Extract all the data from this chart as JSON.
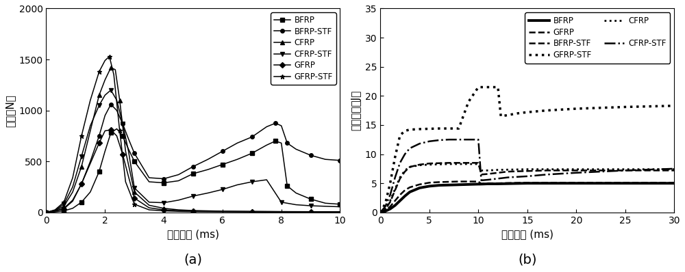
{
  "plot_a": {
    "title": "(a)",
    "xlabel": "冲击时间 (ms)",
    "ylabel": "抗力（N）",
    "xlim": [
      0,
      10
    ],
    "ylim": [
      0,
      2000
    ],
    "yticks": [
      0,
      500,
      1000,
      1500,
      2000
    ],
    "xticks": [
      0,
      2,
      4,
      6,
      8,
      10
    ],
    "series": {
      "BFRP": {
        "marker": "s",
        "x": [
          0,
          0.3,
          0.6,
          0.9,
          1.2,
          1.5,
          1.8,
          2.0,
          2.2,
          2.4,
          2.6,
          2.8,
          3.0,
          3.5,
          4.0,
          4.5,
          5.0,
          5.5,
          6.0,
          6.5,
          7.0,
          7.5,
          7.8,
          8.0,
          8.2,
          8.5,
          9.0,
          9.5,
          10.0
        ],
        "y": [
          0,
          5,
          15,
          40,
          100,
          200,
          400,
          600,
          780,
          820,
          750,
          620,
          500,
          300,
          290,
          310,
          380,
          420,
          470,
          520,
          580,
          660,
          700,
          680,
          260,
          190,
          130,
          90,
          80
        ]
      },
      "BFRP-STF": {
        "marker": "o",
        "x": [
          0,
          0.3,
          0.6,
          0.9,
          1.2,
          1.5,
          1.8,
          2.0,
          2.2,
          2.4,
          2.6,
          2.8,
          3.0,
          3.5,
          4.0,
          4.5,
          5.0,
          5.5,
          6.0,
          6.5,
          7.0,
          7.5,
          7.8,
          8.0,
          8.2,
          8.5,
          9.0,
          9.5,
          10.0
        ],
        "y": [
          0,
          10,
          40,
          120,
          280,
          500,
          750,
          950,
          1060,
          1000,
          870,
          720,
          580,
          340,
          330,
          370,
          450,
          520,
          600,
          680,
          740,
          840,
          875,
          850,
          680,
          620,
          560,
          520,
          510
        ]
      },
      "CFRP": {
        "marker": "^",
        "x": [
          0,
          0.3,
          0.6,
          0.9,
          1.2,
          1.5,
          1.8,
          2.0,
          2.2,
          2.35,
          2.5,
          2.7,
          3.0,
          3.5,
          4.0,
          4.5,
          5.0,
          6.0,
          7.0,
          8.0,
          9.0,
          10.0
        ],
        "y": [
          0,
          15,
          60,
          200,
          450,
          800,
          1150,
          1300,
          1420,
          1400,
          1100,
          600,
          200,
          70,
          40,
          25,
          18,
          12,
          10,
          8,
          7,
          6
        ]
      },
      "CFRP-STF": {
        "marker": "v",
        "x": [
          0,
          0.3,
          0.6,
          0.9,
          1.2,
          1.5,
          1.8,
          2.0,
          2.2,
          2.4,
          2.6,
          2.8,
          3.0,
          3.5,
          4.0,
          4.5,
          5.0,
          5.5,
          6.0,
          6.5,
          7.0,
          7.5,
          8.0,
          8.5,
          9.0,
          10.0
        ],
        "y": [
          0,
          20,
          80,
          250,
          550,
          850,
          1050,
          1150,
          1200,
          1100,
          870,
          600,
          240,
          100,
          95,
          120,
          160,
          190,
          225,
          270,
          300,
          320,
          100,
          75,
          65,
          55
        ]
      },
      "GFRP": {
        "marker": "D",
        "x": [
          0,
          0.3,
          0.6,
          0.9,
          1.2,
          1.5,
          1.8,
          2.0,
          2.2,
          2.4,
          2.6,
          2.8,
          3.0,
          3.5,
          4.0,
          4.5,
          5.0,
          6.0,
          7.0,
          8.0,
          9.0,
          10.0
        ],
        "y": [
          0,
          10,
          35,
          110,
          280,
          480,
          680,
          800,
          810,
          750,
          570,
          350,
          140,
          45,
          25,
          18,
          14,
          10,
          8,
          7,
          6,
          5
        ]
      },
      "GFRP-STF": {
        "marker": "*",
        "x": [
          0,
          0.3,
          0.6,
          0.9,
          1.2,
          1.5,
          1.8,
          2.0,
          2.15,
          2.3,
          2.5,
          2.7,
          3.0,
          3.5,
          4.0,
          4.5,
          5.0,
          6.0,
          7.0,
          8.0,
          9.0,
          10.0
        ],
        "y": [
          0,
          25,
          100,
          340,
          750,
          1100,
          1380,
          1490,
          1530,
          1350,
          800,
          300,
          80,
          25,
          15,
          10,
          8,
          6,
          5,
          5,
          4,
          4
        ]
      }
    }
  },
  "plot_b": {
    "title": "(b)",
    "xlabel": "冲击时间 (ms)",
    "ylabel": "能量吸收（J）",
    "xlim": [
      0,
      30
    ],
    "ylim": [
      0,
      35
    ],
    "yticks": [
      0,
      5,
      10,
      15,
      20,
      25,
      30,
      35
    ],
    "xticks": [
      0,
      5,
      10,
      15,
      20,
      25,
      30
    ],
    "series": {
      "BFRP": {
        "style": "-",
        "lw": 2.8,
        "x": [
          0,
          0.5,
          1.0,
          1.5,
          2.0,
          2.5,
          3.0,
          4.0,
          5.0,
          6.0,
          7.0,
          8.0,
          9.0,
          10.0,
          10.2,
          11.0,
          12.0,
          15.0,
          20.0,
          25.0,
          30.0
        ],
        "y": [
          0,
          0.2,
          0.6,
          1.2,
          2.0,
          2.8,
          3.5,
          4.2,
          4.5,
          4.65,
          4.7,
          4.75,
          4.8,
          4.85,
          4.85,
          4.9,
          4.9,
          5.0,
          5.0,
          5.0,
          5.0
        ]
      },
      "BFRP-STF": {
        "style": "--",
        "lw": 1.8,
        "x": [
          0,
          0.5,
          1.0,
          1.5,
          2.0,
          2.5,
          3.0,
          4.0,
          5.0,
          6.0,
          7.0,
          8.0,
          9.0,
          10.0,
          10.3,
          11.0,
          12.0,
          15.0,
          20.0,
          25.0,
          30.0
        ],
        "y": [
          0,
          0.3,
          1.0,
          2.0,
          3.0,
          3.8,
          4.3,
          4.8,
          5.1,
          5.2,
          5.25,
          5.3,
          5.3,
          5.3,
          4.9,
          5.0,
          5.0,
          5.1,
          5.1,
          5.1,
          5.1
        ]
      },
      "CFRP": {
        "style": ":",
        "lw": 2.0,
        "x": [
          0,
          0.5,
          1.0,
          1.5,
          2.0,
          2.5,
          3.0,
          4.0,
          5.0,
          6.0,
          7.0,
          8.0,
          9.0,
          10.0,
          10.3,
          11.0,
          12.0,
          15.0,
          17.0,
          20.0,
          25.0,
          30.0
        ],
        "y": [
          0,
          0.6,
          2.0,
          4.0,
          6.0,
          7.2,
          7.8,
          8.1,
          8.2,
          8.25,
          8.3,
          8.3,
          8.3,
          8.3,
          7.2,
          7.2,
          7.3,
          7.4,
          7.4,
          7.4,
          7.4,
          7.4
        ]
      },
      "CFRP-STF": {
        "style": "-.",
        "lw": 1.8,
        "x": [
          0,
          0.5,
          1.0,
          1.5,
          2.0,
          2.5,
          3.0,
          4.0,
          5.0,
          6.0,
          7.0,
          8.0,
          9.0,
          10.0,
          10.3,
          11.0,
          12.0,
          13.0,
          15.0,
          17.0,
          20.0,
          25.0,
          30.0
        ],
        "y": [
          0,
          1.0,
          3.0,
          6.0,
          8.5,
          10.0,
          11.0,
          11.8,
          12.2,
          12.4,
          12.5,
          12.5,
          12.5,
          12.5,
          5.5,
          5.6,
          5.8,
          6.0,
          6.2,
          6.5,
          6.8,
          7.2,
          7.5
        ]
      },
      "GFRP": {
        "style": "--",
        "lw": 1.8,
        "x": [
          0,
          0.5,
          1.0,
          1.5,
          2.0,
          2.5,
          3.0,
          4.0,
          5.0,
          6.0,
          7.0,
          8.0,
          9.0,
          10.0,
          10.3,
          11.0,
          12.0,
          13.0,
          15.0,
          17.0,
          20.0,
          25.0,
          30.0
        ],
        "y": [
          0,
          0.5,
          1.8,
          3.8,
          5.8,
          7.0,
          7.8,
          8.2,
          8.4,
          8.45,
          8.5,
          8.5,
          8.5,
          8.5,
          6.5,
          6.6,
          6.8,
          7.0,
          7.1,
          7.2,
          7.2,
          7.2,
          7.2
        ]
      },
      "GFRP-STF": {
        "style": ":",
        "lw": 2.5,
        "x": [
          0,
          0.5,
          1.0,
          1.5,
          2.0,
          2.5,
          3.0,
          4.0,
          5.0,
          6.0,
          7.0,
          8.0,
          9.0,
          10.0,
          11.0,
          12.0,
          12.3,
          13.0,
          14.0,
          15.0,
          17.0,
          20.0,
          25.0,
          30.0
        ],
        "y": [
          0,
          1.5,
          5.0,
          9.5,
          13.2,
          14.0,
          14.2,
          14.3,
          14.35,
          14.4,
          14.4,
          14.4,
          19.0,
          21.5,
          21.5,
          21.5,
          16.5,
          16.7,
          17.0,
          17.2,
          17.5,
          17.8,
          18.1,
          18.3
        ]
      }
    }
  }
}
